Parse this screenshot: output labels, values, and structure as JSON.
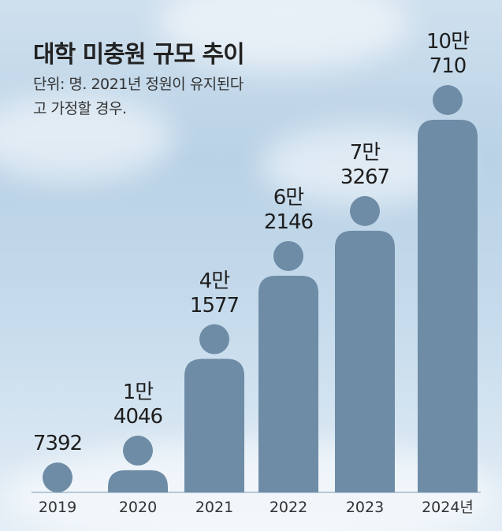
{
  "chart_data": {
    "type": "pictogram",
    "title": "대학 미충원 규모 추이",
    "subtitle": "단위: 명. 2021년 정원이 유지된다고 가정할 경우.",
    "categories": [
      "2019",
      "2020",
      "2021",
      "2022",
      "2023",
      "2024년"
    ],
    "values": [
      7392,
      14046,
      41577,
      62146,
      73267,
      100710
    ],
    "value_labels": [
      "7392",
      "1만\n4046",
      "4만\n1577",
      "6만\n2146",
      "7만\n3267",
      "10만\n710"
    ],
    "color": "#6e8ca6"
  }
}
